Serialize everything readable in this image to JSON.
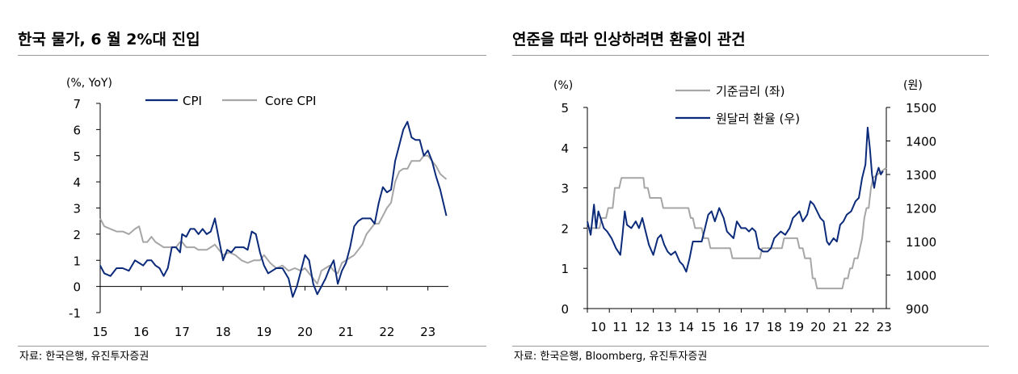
{
  "chart_data": [
    {
      "type": "line",
      "title": "한국 물가, 6 월 2%대 진입",
      "unit_label": "(%, YoY)",
      "x_ticks": [
        "15",
        "16",
        "17",
        "18",
        "19",
        "20",
        "21",
        "22",
        "23"
      ],
      "x_range": [
        2015.0,
        2023.5
      ],
      "ylim": [
        -1,
        7
      ],
      "y_ticks": [
        "7",
        "6",
        "5",
        "4",
        "3",
        "2",
        "1",
        "0",
        "-1"
      ],
      "source": "자료: 한국은행, 유진투자증권",
      "series": [
        {
          "name": "CPI",
          "color": "#0b2a7a",
          "x": [
            2015.0,
            2015.1,
            2015.25,
            2015.4,
            2015.55,
            2015.7,
            2015.85,
            2015.95,
            2016.05,
            2016.15,
            2016.25,
            2016.35,
            2016.45,
            2016.55,
            2016.65,
            2016.75,
            2016.85,
            2016.95,
            2017.0,
            2017.1,
            2017.2,
            2017.3,
            2017.4,
            2017.5,
            2017.6,
            2017.7,
            2017.8,
            2017.9,
            2018.0,
            2018.1,
            2018.2,
            2018.3,
            2018.4,
            2018.5,
            2018.6,
            2018.7,
            2018.8,
            2018.9,
            2019.0,
            2019.1,
            2019.2,
            2019.3,
            2019.45,
            2019.6,
            2019.7,
            2019.8,
            2019.9,
            2020.0,
            2020.1,
            2020.2,
            2020.3,
            2020.4,
            2020.5,
            2020.6,
            2020.7,
            2020.8,
            2020.9,
            2021.0,
            2021.1,
            2021.2,
            2021.3,
            2021.4,
            2021.5,
            2021.6,
            2021.7,
            2021.8,
            2021.9,
            2022.0,
            2022.1,
            2022.2,
            2022.3,
            2022.4,
            2022.5,
            2022.6,
            2022.7,
            2022.8,
            2022.9,
            2023.0,
            2023.1,
            2023.2,
            2023.3,
            2023.45
          ],
          "y": [
            0.8,
            0.5,
            0.4,
            0.7,
            0.7,
            0.6,
            1.0,
            0.9,
            0.8,
            1.0,
            1.0,
            0.8,
            0.7,
            0.4,
            0.7,
            1.5,
            1.5,
            1.3,
            2.0,
            1.9,
            2.2,
            2.2,
            2.0,
            2.2,
            2.0,
            2.1,
            2.6,
            1.8,
            1.0,
            1.4,
            1.3,
            1.5,
            1.5,
            1.5,
            1.4,
            2.1,
            2.0,
            1.3,
            0.8,
            0.5,
            0.6,
            0.7,
            0.7,
            0.3,
            -0.4,
            0.0,
            0.6,
            1.2,
            1.0,
            0.1,
            -0.3,
            0.0,
            0.3,
            0.7,
            1.0,
            0.1,
            0.6,
            0.9,
            1.5,
            2.3,
            2.5,
            2.6,
            2.6,
            2.6,
            2.4,
            3.2,
            3.8,
            3.6,
            3.7,
            4.8,
            5.4,
            6.0,
            6.3,
            5.7,
            5.6,
            5.6,
            5.0,
            5.2,
            4.8,
            4.2,
            3.7,
            2.7
          ]
        },
        {
          "name": "Core CPI",
          "color": "#a6a6a6",
          "x": [
            2015.0,
            2015.1,
            2015.25,
            2015.4,
            2015.55,
            2015.7,
            2015.85,
            2015.95,
            2016.05,
            2016.15,
            2016.25,
            2016.35,
            2016.45,
            2016.55,
            2016.65,
            2016.75,
            2016.85,
            2016.95,
            2017.0,
            2017.1,
            2017.2,
            2017.3,
            2017.4,
            2017.5,
            2017.6,
            2017.7,
            2017.8,
            2017.9,
            2018.0,
            2018.15,
            2018.3,
            2018.45,
            2018.6,
            2018.75,
            2018.9,
            2019.0,
            2019.15,
            2019.3,
            2019.45,
            2019.6,
            2019.75,
            2019.9,
            2020.0,
            2020.1,
            2020.2,
            2020.3,
            2020.4,
            2020.5,
            2020.6,
            2020.7,
            2020.8,
            2020.9,
            2021.0,
            2021.1,
            2021.2,
            2021.3,
            2021.4,
            2021.5,
            2021.6,
            2021.7,
            2021.8,
            2021.9,
            2022.0,
            2022.1,
            2022.2,
            2022.3,
            2022.4,
            2022.5,
            2022.6,
            2022.7,
            2022.8,
            2022.9,
            2023.0,
            2023.1,
            2023.2,
            2023.3,
            2023.45
          ],
          "y": [
            2.6,
            2.3,
            2.2,
            2.1,
            2.1,
            2.0,
            2.2,
            2.3,
            1.7,
            1.7,
            1.9,
            1.7,
            1.6,
            1.5,
            1.5,
            1.5,
            1.5,
            1.7,
            1.7,
            1.5,
            1.5,
            1.5,
            1.4,
            1.4,
            1.4,
            1.5,
            1.6,
            1.4,
            1.2,
            1.3,
            1.2,
            1.0,
            0.9,
            1.0,
            1.0,
            1.2,
            0.9,
            0.7,
            0.8,
            0.6,
            0.7,
            0.6,
            0.7,
            0.5,
            0.3,
            0.1,
            0.6,
            0.7,
            0.8,
            0.6,
            0.5,
            0.9,
            1.0,
            1.1,
            1.2,
            1.4,
            1.6,
            2.0,
            2.2,
            2.4,
            2.4,
            2.7,
            3.0,
            3.2,
            4.0,
            4.4,
            4.5,
            4.5,
            4.8,
            4.8,
            4.8,
            5.0,
            5.0,
            4.8,
            4.6,
            4.3,
            4.1
          ]
        }
      ]
    },
    {
      "type": "line",
      "title": "연준을 따라 인상하려면 환율이 관건",
      "left_unit_label": "(%)",
      "right_unit_label": "(원)",
      "x_ticks": [
        "10",
        "11",
        "12",
        "13",
        "14",
        "15",
        "16",
        "17",
        "18",
        "19",
        "20",
        "21",
        "22",
        "23"
      ],
      "x_range": [
        2010.0,
        2023.6
      ],
      "left_ylim": [
        0,
        5
      ],
      "left_y_ticks": [
        "5",
        "4",
        "3",
        "2",
        "1",
        "0"
      ],
      "right_ylim": [
        900,
        1500
      ],
      "right_y_ticks": [
        "1500",
        "1400",
        "1300",
        "1200",
        "1100",
        "1000",
        "900"
      ],
      "source": "자료: 한국은행, Bloomberg, 유진투자증권",
      "series": [
        {
          "name": "기준금리 (좌)",
          "axis": "left",
          "color": "#a6a6a6",
          "x": [
            2010.0,
            2010.55,
            2010.65,
            2010.85,
            2010.95,
            2011.15,
            2011.25,
            2011.45,
            2011.55,
            2012.55,
            2012.6,
            2012.75,
            2012.85,
            2013.35,
            2013.45,
            2014.6,
            2014.7,
            2014.8,
            2014.9,
            2015.2,
            2015.3,
            2015.5,
            2015.6,
            2016.5,
            2016.6,
            2017.85,
            2017.95,
            2018.85,
            2018.95,
            2019.55,
            2019.65,
            2019.8,
            2019.9,
            2020.15,
            2020.25,
            2020.35,
            2020.45,
            2021.6,
            2021.7,
            2021.85,
            2021.95,
            2022.05,
            2022.15,
            2022.3,
            2022.4,
            2022.5,
            2022.6,
            2022.7,
            2022.8,
            2022.9,
            2023.0,
            2023.6
          ],
          "y": [
            2.0,
            2.0,
            2.25,
            2.25,
            2.5,
            2.5,
            3.0,
            3.0,
            3.25,
            3.25,
            3.0,
            3.0,
            2.75,
            2.75,
            2.5,
            2.5,
            2.25,
            2.25,
            2.0,
            2.0,
            1.75,
            1.75,
            1.5,
            1.5,
            1.25,
            1.25,
            1.5,
            1.5,
            1.75,
            1.75,
            1.5,
            1.5,
            1.25,
            1.25,
            0.75,
            0.75,
            0.5,
            0.5,
            0.75,
            0.75,
            1.0,
            1.0,
            1.25,
            1.25,
            1.5,
            1.75,
            2.25,
            2.5,
            2.5,
            3.0,
            3.25,
            3.5
          ]
        },
        {
          "name": "원달러 환율 (우)",
          "axis": "right",
          "color": "#0b2a7a",
          "x": [
            2010.0,
            2010.15,
            2010.3,
            2010.4,
            2010.5,
            2010.6,
            2010.75,
            2010.9,
            2011.1,
            2011.3,
            2011.5,
            2011.6,
            2011.7,
            2011.8,
            2012.0,
            2012.2,
            2012.35,
            2012.5,
            2012.65,
            2012.8,
            2013.0,
            2013.2,
            2013.35,
            2013.5,
            2013.65,
            2013.8,
            2014.0,
            2014.2,
            2014.35,
            2014.5,
            2014.65,
            2014.8,
            2015.0,
            2015.2,
            2015.35,
            2015.5,
            2015.65,
            2015.8,
            2016.0,
            2016.2,
            2016.35,
            2016.5,
            2016.65,
            2016.8,
            2017.0,
            2017.2,
            2017.35,
            2017.5,
            2017.65,
            2017.8,
            2018.0,
            2018.2,
            2018.35,
            2018.5,
            2018.65,
            2018.8,
            2019.0,
            2019.2,
            2019.35,
            2019.5,
            2019.65,
            2019.8,
            2020.0,
            2020.15,
            2020.3,
            2020.45,
            2020.6,
            2020.75,
            2020.9,
            2021.0,
            2021.2,
            2021.35,
            2021.5,
            2021.65,
            2021.8,
            2022.0,
            2022.2,
            2022.35,
            2022.5,
            2022.65,
            2022.75,
            2022.85,
            2022.95,
            2023.05,
            2023.15,
            2023.25,
            2023.35,
            2023.45
          ],
          "y": [
            1160,
            1120,
            1210,
            1140,
            1190,
            1170,
            1140,
            1130,
            1110,
            1080,
            1060,
            1120,
            1190,
            1150,
            1140,
            1160,
            1140,
            1170,
            1130,
            1090,
            1060,
            1110,
            1120,
            1090,
            1070,
            1060,
            1070,
            1040,
            1030,
            1010,
            1050,
            1100,
            1100,
            1100,
            1140,
            1180,
            1190,
            1160,
            1200,
            1170,
            1130,
            1120,
            1110,
            1160,
            1140,
            1140,
            1130,
            1140,
            1130,
            1080,
            1070,
            1070,
            1080,
            1110,
            1120,
            1130,
            1120,
            1140,
            1170,
            1180,
            1190,
            1160,
            1180,
            1220,
            1210,
            1190,
            1170,
            1160,
            1100,
            1090,
            1110,
            1100,
            1150,
            1160,
            1180,
            1190,
            1220,
            1230,
            1290,
            1330,
            1440,
            1380,
            1300,
            1260,
            1300,
            1320,
            1300,
            1310
          ]
        }
      ]
    }
  ]
}
